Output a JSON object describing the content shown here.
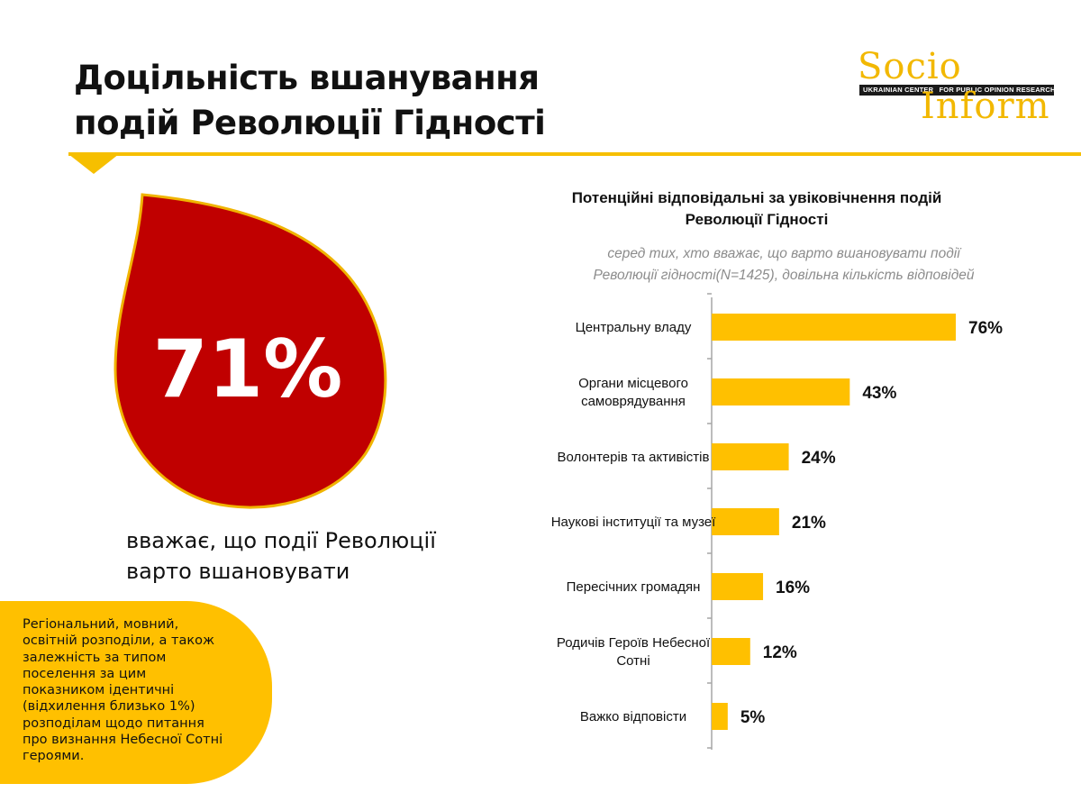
{
  "title_lines": [
    "Доцільність вшанування",
    "подій Революції Гідності"
  ],
  "logo": {
    "word1": "Socio",
    "word2": "Inform",
    "band_left": "UKRAINIAN CENTER",
    "band_right": "FOR PUBLIC OPINION RESEARCH"
  },
  "highlight": {
    "value": "71%",
    "caption_lines": [
      "вважає, що події Революції",
      "варто вшановувати"
    ]
  },
  "note": {
    "lines": [
      "Регіональний, мовний,",
      "освітній розподіли, а також",
      "залежність за типом",
      "поселення за цим",
      "показником ідентичні",
      "(відхилення близько 1%)",
      "розподілам  щодо  питання",
      "про визнання Небесної Сотні",
      "героями."
    ]
  },
  "chart_data": {
    "type": "bar",
    "orientation": "horizontal",
    "title_lines": [
      "Потенційні відповідальні за увіковічнення подій",
      "Революції Гідності"
    ],
    "subtitle_lines": [
      "серед тих, хто вважає, що варто вшановувати події",
      "Революції гідності(N=1425), довільна кількість відповідей"
    ],
    "categories": [
      [
        "Центральну владу"
      ],
      [
        "Органи місцевого",
        "самоврядування"
      ],
      [
        "Волонтерів та активістів"
      ],
      [
        "Наукові інституції та музеї"
      ],
      [
        "Пересічних громадян"
      ],
      [
        "Родичів Героїв Небесної",
        "Сотні"
      ],
      [
        "Важко відповісти"
      ]
    ],
    "values": [
      76,
      43,
      24,
      21,
      16,
      12,
      5
    ],
    "value_labels": [
      "76%",
      "43%",
      "24%",
      "21%",
      "16%",
      "12%",
      "5%"
    ],
    "unit": "%",
    "xlim": [
      0,
      80
    ],
    "bar_color": "#ffc000"
  },
  "colors": {
    "accent_yellow": "#ffc000",
    "drop_red": "#c00000"
  }
}
